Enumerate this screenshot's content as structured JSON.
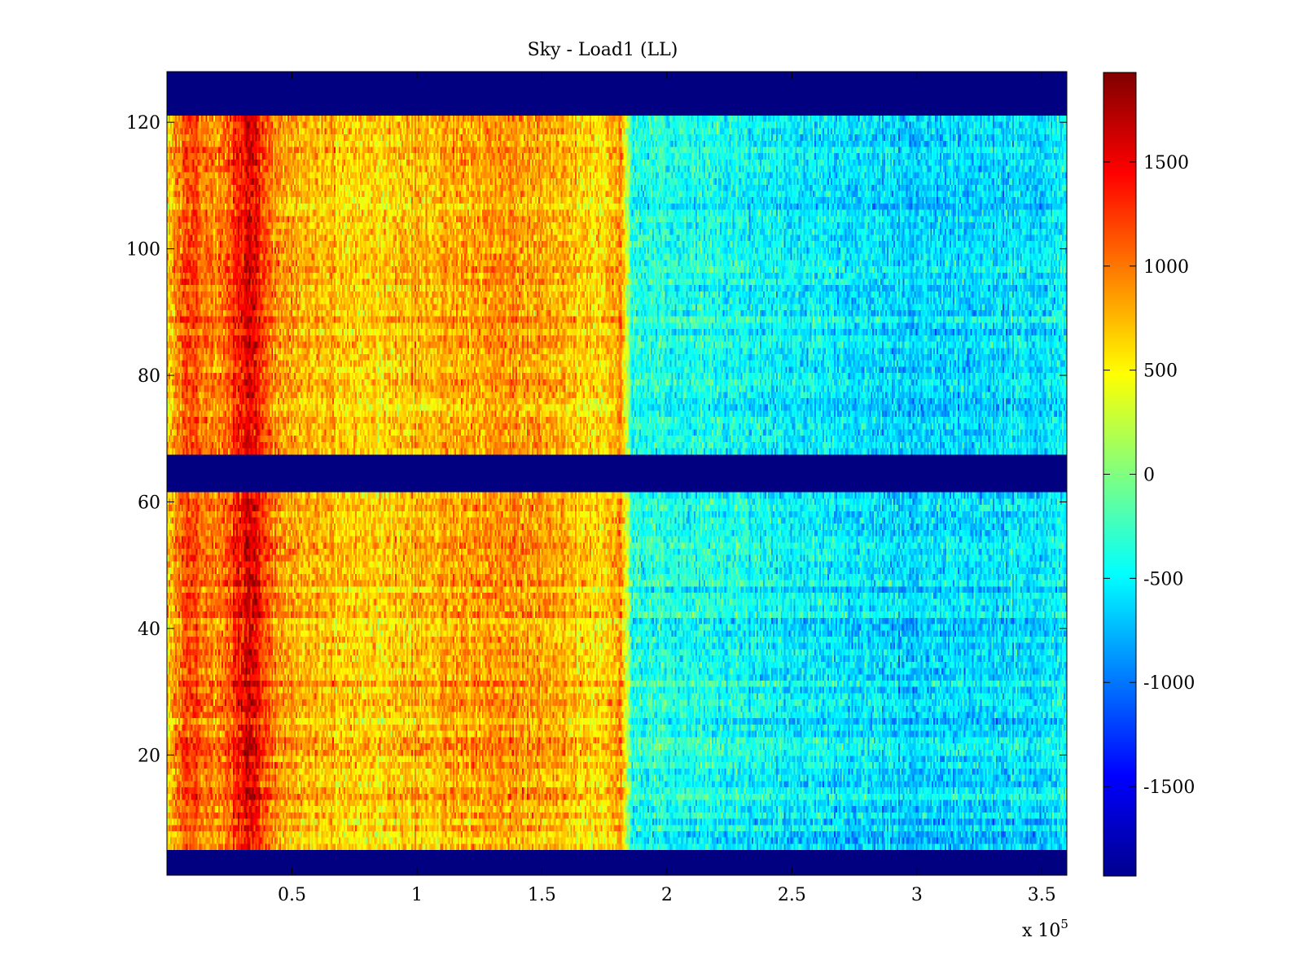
{
  "chart_data": {
    "type": "heatmap",
    "title": "Sky - Load1 (LL)",
    "xlabel": "",
    "ylabel": "",
    "x_range": [
      0,
      360000
    ],
    "y_range": [
      1,
      128
    ],
    "x_ticks": [
      50000,
      100000,
      150000,
      200000,
      250000,
      300000,
      350000
    ],
    "x_tick_labels": [
      "0.5",
      "1",
      "1.5",
      "2",
      "2.5",
      "3",
      "3.5"
    ],
    "x_multiplier_label": "x 10",
    "x_multiplier_exponent": "5",
    "y_ticks": [
      20,
      40,
      60,
      80,
      100,
      120
    ],
    "y_tick_labels": [
      "20",
      "40",
      "60",
      "80",
      "100",
      "120"
    ],
    "colorbar": {
      "colormap": "jet",
      "range": [
        -1930,
        1930
      ],
      "ticks": [
        -1500,
        -1000,
        -500,
        0,
        500,
        1000,
        1500
      ],
      "tick_labels": [
        "-1500",
        "-1000",
        "-500",
        "0",
        "500",
        "1000",
        "1500"
      ]
    },
    "masked_rows": [
      [
        1,
        4
      ],
      [
        62,
        67
      ],
      [
        122,
        128
      ]
    ],
    "masked_value": -1930,
    "x_profile_approx": [
      {
        "x": 0,
        "value": 700
      },
      {
        "x": 8000,
        "value": 1200
      },
      {
        "x": 20000,
        "value": 900
      },
      {
        "x": 33000,
        "value": 1600
      },
      {
        "x": 45000,
        "value": 800
      },
      {
        "x": 80000,
        "value": 650
      },
      {
        "x": 140000,
        "value": 900
      },
      {
        "x": 175000,
        "value": 600
      },
      {
        "x": 182000,
        "value": 900
      },
      {
        "x": 186000,
        "value": -350
      },
      {
        "x": 250000,
        "value": -500
      },
      {
        "x": 300000,
        "value": -650
      },
      {
        "x": 360000,
        "value": -550
      }
    ],
    "grid": false
  }
}
